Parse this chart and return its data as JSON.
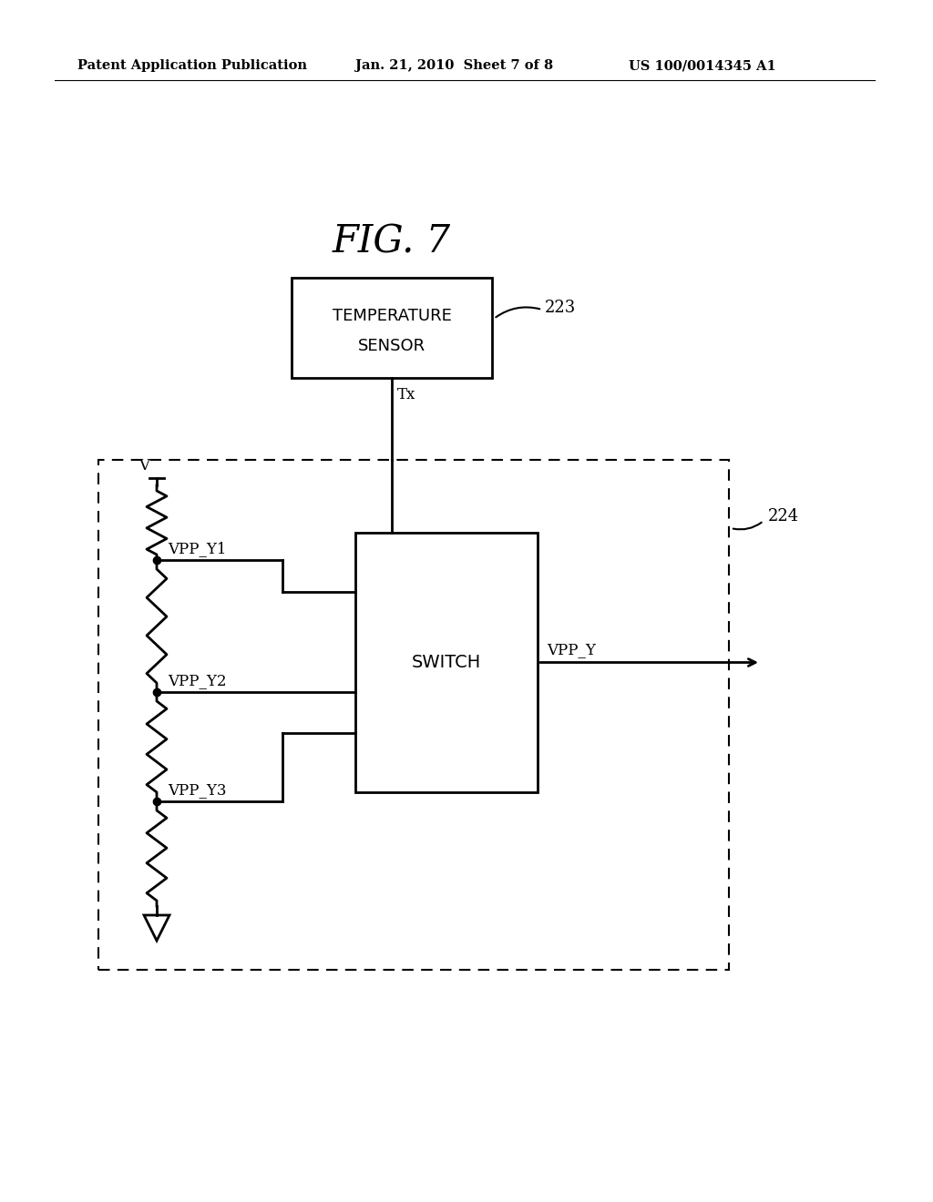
{
  "background_color": "#ffffff",
  "header_left": "Patent Application Publication",
  "header_mid": "Jan. 21, 2010  Sheet 7 of 8",
  "header_right": "US 100/0014345 A1",
  "fig_title": "FIG. 7",
  "temp_sensor_line1": "TEMPERATURE",
  "temp_sensor_line2": "SENSOR",
  "temp_sensor_ref": "223",
  "switch_label": "SWITCH",
  "outer_box_ref": "224",
  "vpp_y1_label": "VPP_Y1",
  "vpp_y2_label": "VPP_Y2",
  "vpp_y3_label": "VPP_Y3",
  "vpp_y_label": "VPP_Y",
  "tx_label": "Tx",
  "v_label": "V"
}
